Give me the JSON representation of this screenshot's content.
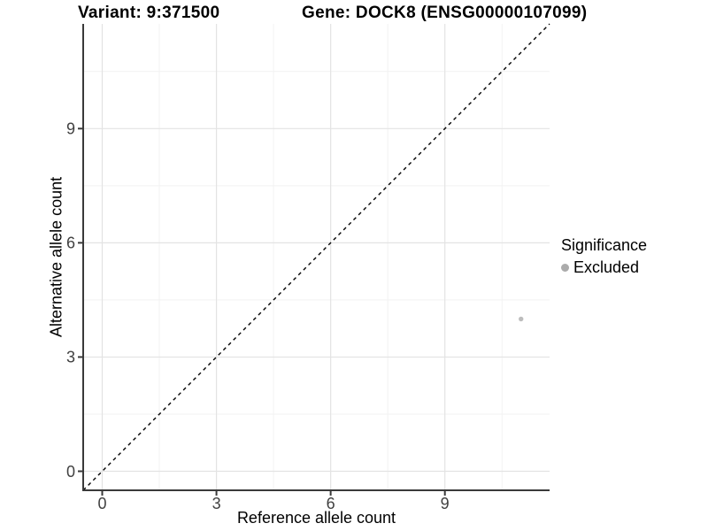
{
  "chart_data": {
    "type": "scatter",
    "titles": {
      "left": "Variant: 9:371500",
      "right": "Gene: DOCK8 (ENSG00000107099)"
    },
    "xlabel": "Reference allele count",
    "ylabel": "Alternative allele count",
    "xlim": [
      -0.5,
      11.75
    ],
    "ylim": [
      -0.5,
      11.75
    ],
    "xticks": [
      0,
      3,
      6,
      9
    ],
    "yticks": [
      0,
      3,
      6,
      9
    ],
    "xticks_minor": [
      1.5,
      4.5,
      7.5,
      10.5
    ],
    "yticks_minor": [
      1.5,
      4.5,
      7.5,
      10.5
    ],
    "grid": "major+minor",
    "reference_line": {
      "type": "identity y=x",
      "style": "dashed",
      "color": "#000000"
    },
    "series": [
      {
        "name": "Excluded",
        "color": "#bdbdbd",
        "points": [
          {
            "x": 11,
            "y": 4
          }
        ]
      }
    ],
    "legend": {
      "title": "Significance",
      "position": "right",
      "items": [
        {
          "label": "Excluded",
          "marker_color": "#ababab"
        }
      ]
    },
    "colors": {
      "grid_major": "#e3e3e3",
      "grid_minor": "#f2f2f2",
      "axis_line": "#3a3a3a",
      "tick_label": "#404040"
    }
  }
}
